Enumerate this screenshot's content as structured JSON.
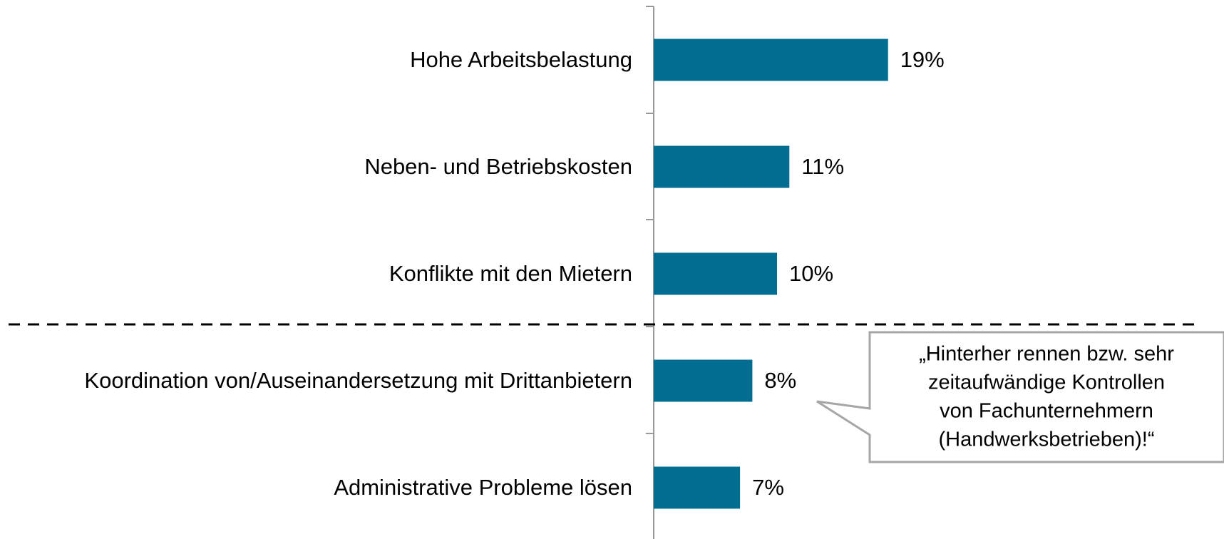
{
  "chart_data": {
    "type": "bar",
    "orientation": "horizontal",
    "categories": [
      "Hohe Arbeitsbelastung",
      "Neben- und Betriebskosten",
      "Konflikte mit den Mietern",
      "Koordination von/Auseinandersetzung mit Drittanbietern",
      "Administrative Probleme lösen"
    ],
    "values": [
      19,
      11,
      10,
      8,
      7
    ],
    "value_labels": [
      "19%",
      "11%",
      "10%",
      "8%",
      "7%"
    ],
    "color": "#006d91",
    "annotation": [
      "„Hinterher rennen bzw. sehr",
      "zeitaufwändige Kontrollen",
      "von Fachunternehmern",
      "(Handwerksbetrieben)!“"
    ]
  }
}
